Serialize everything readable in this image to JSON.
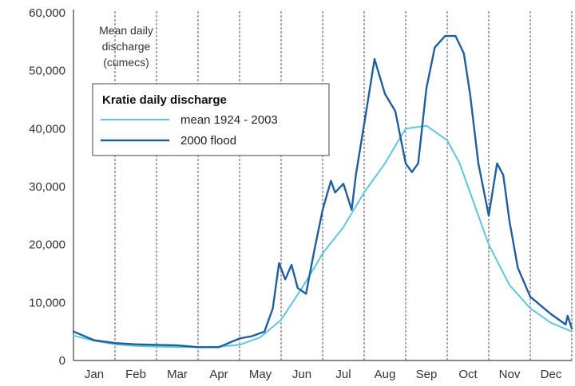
{
  "chart_data": {
    "type": "line",
    "title": "",
    "ylabel_lines": [
      "Mean daily",
      "discharge",
      "(cumecs)"
    ],
    "xlabel": "",
    "x_tick_labels": [
      "Jan",
      "Feb",
      "Mar",
      "Apr",
      "May",
      "Jun",
      "Jul",
      "Aug",
      "Sep",
      "Oct",
      "Nov",
      "Dec"
    ],
    "y_tick_labels": [
      "0",
      "10,000",
      "20,000",
      "30,000",
      "40,000",
      "50,000",
      "60,000"
    ],
    "ylim": [
      0,
      60000
    ],
    "grid": "vertical dashed lines",
    "legend": {
      "title": "Kratie daily discharge",
      "placement": "top-left"
    },
    "colors": {
      "mean": "#5ec6dc",
      "flood2000": "#1f5fa0",
      "grid": "#555555",
      "axis": "#444444"
    },
    "x_unit": "month (decimal, 0 = start of Jan, 12 = end of Dec)",
    "series": [
      {
        "name": "mean 1924 - 2003",
        "x": [
          0,
          0.5,
          1,
          1.5,
          2,
          2.5,
          3,
          3.5,
          4,
          4.5,
          5,
          5.5,
          5.8,
          6,
          6.5,
          7,
          7.5,
          8,
          8.5,
          9,
          9.3,
          9.6,
          10,
          10.5,
          11,
          11.5,
          12
        ],
        "y": [
          4300,
          3400,
          2800,
          2500,
          2400,
          2300,
          2300,
          2400,
          2700,
          4000,
          7000,
          12500,
          16000,
          18500,
          23000,
          29000,
          34000,
          40000,
          40500,
          38000,
          34000,
          28000,
          20000,
          13000,
          9000,
          6500,
          5000
        ]
      },
      {
        "name": "2000 flood",
        "x": [
          0,
          0.5,
          1,
          1.5,
          2,
          2.5,
          3,
          3.5,
          4,
          4.3,
          4.6,
          4.8,
          4.95,
          5.1,
          5.25,
          5.4,
          5.6,
          5.8,
          6,
          6.2,
          6.3,
          6.5,
          6.7,
          6.8,
          7.05,
          7.25,
          7.5,
          7.75,
          8,
          8.15,
          8.3,
          8.5,
          8.7,
          8.95,
          9.2,
          9.4,
          9.55,
          9.75,
          10,
          10.2,
          10.35,
          10.5,
          10.7,
          11,
          11.5,
          11.85,
          11.9,
          12
        ],
        "y": [
          5000,
          3500,
          3000,
          2800,
          2700,
          2600,
          2300,
          2300,
          3800,
          4200,
          5000,
          9000,
          16800,
          14000,
          16500,
          12500,
          11500,
          19000,
          26000,
          31000,
          29000,
          30500,
          26000,
          32000,
          43000,
          52000,
          46000,
          43000,
          34000,
          32500,
          34000,
          47000,
          54000,
          56000,
          56000,
          53000,
          46000,
          34000,
          25000,
          34000,
          32000,
          24000,
          16000,
          11000,
          8000,
          6200,
          7700,
          5500
        ]
      }
    ]
  }
}
